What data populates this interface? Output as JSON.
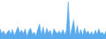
{
  "chart_data": {
    "type": "area",
    "x": [
      0,
      1,
      2,
      3,
      4,
      5,
      6,
      7,
      8,
      9,
      10,
      11,
      12,
      13,
      14,
      15,
      16,
      17,
      18,
      19,
      20,
      21,
      22,
      23,
      24,
      25,
      26,
      27,
      28,
      29,
      30,
      31,
      32,
      33,
      34,
      35,
      36,
      37,
      38,
      39,
      40,
      41,
      42,
      43,
      44,
      45,
      46,
      47,
      48,
      49,
      50,
      51,
      52,
      53,
      54,
      55,
      56,
      57,
      58,
      59
    ],
    "values": [
      1.5,
      0.8,
      1.2,
      0.6,
      1.0,
      1.3,
      0.7,
      1.4,
      0.5,
      1.1,
      1.8,
      0.9,
      1.3,
      0.8,
      1.5,
      0.4,
      1.2,
      1.6,
      0.7,
      1.0,
      0.5,
      1.4,
      2.2,
      0.6,
      1.8,
      0.5,
      1.6,
      0.9,
      1.3,
      0.4,
      1.5,
      1.1,
      0.8,
      1.2,
      0.7,
      1.4,
      0.6,
      1.3,
      5.5,
      0.4,
      1.8,
      2.8,
      0.5,
      2.0,
      0.6,
      1.4,
      0.5,
      1.6,
      0.8,
      1.2,
      0.6,
      1.1,
      0.5,
      1.3,
      0.7,
      1.5,
      0.8,
      1.0,
      0.6,
      1.2
    ],
    "color": "#5aabee",
    "xlim": [
      0,
      59
    ],
    "ylim": [
      0,
      5.775
    ],
    "grid": false,
    "tick_labels": false
  }
}
